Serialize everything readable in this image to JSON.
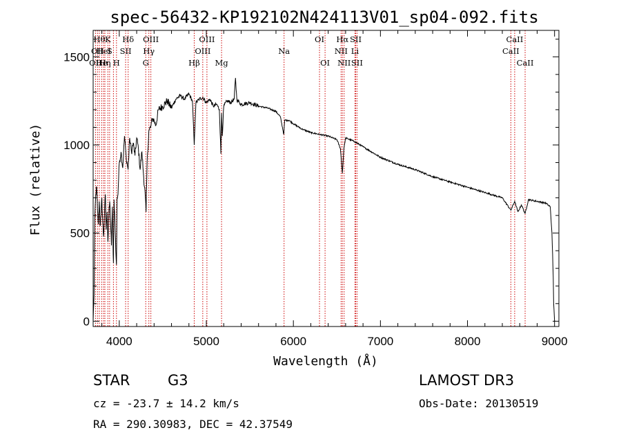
{
  "chart_data": {
    "type": "line",
    "title": "spec-56432-KP192102N424113V01_sp04-092.fits",
    "xlabel": "Wavelength (Å)",
    "ylabel": "Flux (relative)",
    "xlim": [
      3700,
      9050
    ],
    "ylim": [
      -30,
      1650
    ],
    "xticks": [
      4000,
      5000,
      6000,
      7000,
      8000,
      9000
    ],
    "yticks": [
      0,
      500,
      1000,
      1500
    ],
    "series": [
      {
        "x": [
          3700,
          3710,
          3720,
          3730,
          3740,
          3750,
          3760,
          3770,
          3780,
          3790,
          3800,
          3810,
          3820,
          3830,
          3840,
          3850,
          3860,
          3870,
          3880,
          3890,
          3900,
          3910,
          3920,
          3930,
          3933,
          3940,
          3950,
          3960,
          3968,
          3975,
          3985,
          4000,
          4020,
          4040,
          4060,
          4080,
          4101,
          4120,
          4140,
          4160,
          4180,
          4200,
          4220,
          4240,
          4260,
          4280,
          4300,
          4308,
          4320,
          4340,
          4360,
          4380,
          4400,
          4420,
          4450,
          4500,
          4550,
          4600,
          4650,
          4700,
          4750,
          4800,
          4840,
          4861,
          4880,
          4920,
          4960,
          5000,
          5040,
          5080,
          5120,
          5150,
          5167,
          5175,
          5184,
          5200,
          5240,
          5280,
          5320,
          5335,
          5350,
          5360,
          5380,
          5400,
          5500,
          5600,
          5700,
          5800,
          5850,
          5890,
          5900,
          5950,
          6000,
          6100,
          6200,
          6300,
          6400,
          6500,
          6540,
          6563,
          6580,
          6600,
          6700,
          6800,
          6900,
          7000,
          7200,
          7400,
          7600,
          7800,
          8000,
          8200,
          8400,
          8498,
          8542,
          8580,
          8620,
          8662,
          8700,
          8800,
          8900,
          8950,
          8970,
          8985,
          8990,
          9000
        ],
        "values": [
          0,
          150,
          600,
          720,
          760,
          630,
          550,
          680,
          540,
          600,
          700,
          560,
          480,
          600,
          720,
          520,
          620,
          450,
          600,
          680,
          560,
          430,
          650,
          380,
          330,
          690,
          580,
          400,
          320,
          700,
          720,
          900,
          960,
          870,
          1050,
          930,
          860,
          1040,
          960,
          1010,
          940,
          1040,
          980,
          860,
          960,
          820,
          700,
          620,
          900,
          1080,
          1100,
          1150,
          1140,
          1110,
          1200,
          1220,
          1250,
          1210,
          1260,
          1280,
          1260,
          1290,
          1250,
          1000,
          1240,
          1260,
          1270,
          1240,
          1260,
          1220,
          1230,
          1200,
          950,
          1180,
          1050,
          1220,
          1250,
          1240,
          1260,
          1380,
          1260,
          1250,
          1240,
          1230,
          1240,
          1220,
          1210,
          1190,
          1160,
          1060,
          1140,
          1140,
          1120,
          1090,
          1070,
          1060,
          1050,
          1030,
          980,
          840,
          980,
          1040,
          1020,
          990,
          960,
          930,
          890,
          860,
          820,
          790,
          760,
          730,
          700,
          630,
          680,
          620,
          660,
          610,
          690,
          680,
          670,
          650,
          500,
          250,
          100,
          0
        ]
      }
    ],
    "lines": [
      {
        "x": 3727,
        "label": "OII",
        "row": 2
      },
      {
        "x": 3750,
        "label": "OII",
        "row": 1
      },
      {
        "x": 3771,
        "label": "Hθ",
        "row": 0
      },
      {
        "x": 3798,
        "label": "He",
        "row": 2
      },
      {
        "x": 3820,
        "label": "HeI",
        "row": 1
      },
      {
        "x": 3835,
        "label": "Hη",
        "row": 2
      },
      {
        "x": 3869,
        "label": "K",
        "row": 0
      },
      {
        "x": 3889,
        "label": "S",
        "row": 1
      },
      {
        "x": 3933,
        "label": "",
        "row": 0
      },
      {
        "x": 3968,
        "label": "H",
        "row": 2
      },
      {
        "x": 4073,
        "label": "SII",
        "row": 1
      },
      {
        "x": 4102,
        "label": "Hδ",
        "row": 0
      },
      {
        "x": 4304,
        "label": "G",
        "row": 2
      },
      {
        "x": 4340,
        "label": "Hγ",
        "row": 1
      },
      {
        "x": 4363,
        "label": "OIII",
        "row": 0
      },
      {
        "x": 4861,
        "label": "Hβ",
        "row": 2
      },
      {
        "x": 4959,
        "label": "OIII",
        "row": 1
      },
      {
        "x": 5007,
        "label": "OIII",
        "row": 0
      },
      {
        "x": 5175,
        "label": "Mg",
        "row": 2
      },
      {
        "x": 5893,
        "label": "Na",
        "row": 1
      },
      {
        "x": 6300,
        "label": "OI",
        "row": 0
      },
      {
        "x": 6364,
        "label": "OI",
        "row": 2
      },
      {
        "x": 6548,
        "label": "NII",
        "row": 1
      },
      {
        "x": 6563,
        "label": "Hα",
        "row": 0
      },
      {
        "x": 6583,
        "label": "NII",
        "row": 2
      },
      {
        "x": 6707,
        "label": "Li",
        "row": 1
      },
      {
        "x": 6716,
        "label": "SII",
        "row": 0
      },
      {
        "x": 6731,
        "label": "SII",
        "row": 2
      },
      {
        "x": 8498,
        "label": "CaII",
        "row": 1
      },
      {
        "x": 8542,
        "label": "CaII",
        "row": 0
      },
      {
        "x": 8662,
        "label": "CaII",
        "row": 2
      }
    ]
  },
  "info": {
    "class": "STAR",
    "subclass": "G3",
    "survey": "LAMOST DR3",
    "cz": "cz = -23.7 ± 14.2 km/s",
    "obsdate": "Obs-Date: 20130519",
    "radec": "RA = 290.30983, DEC =  42.37549"
  },
  "colors": {
    "line": "#cc0000",
    "spectrum": "#000000"
  }
}
